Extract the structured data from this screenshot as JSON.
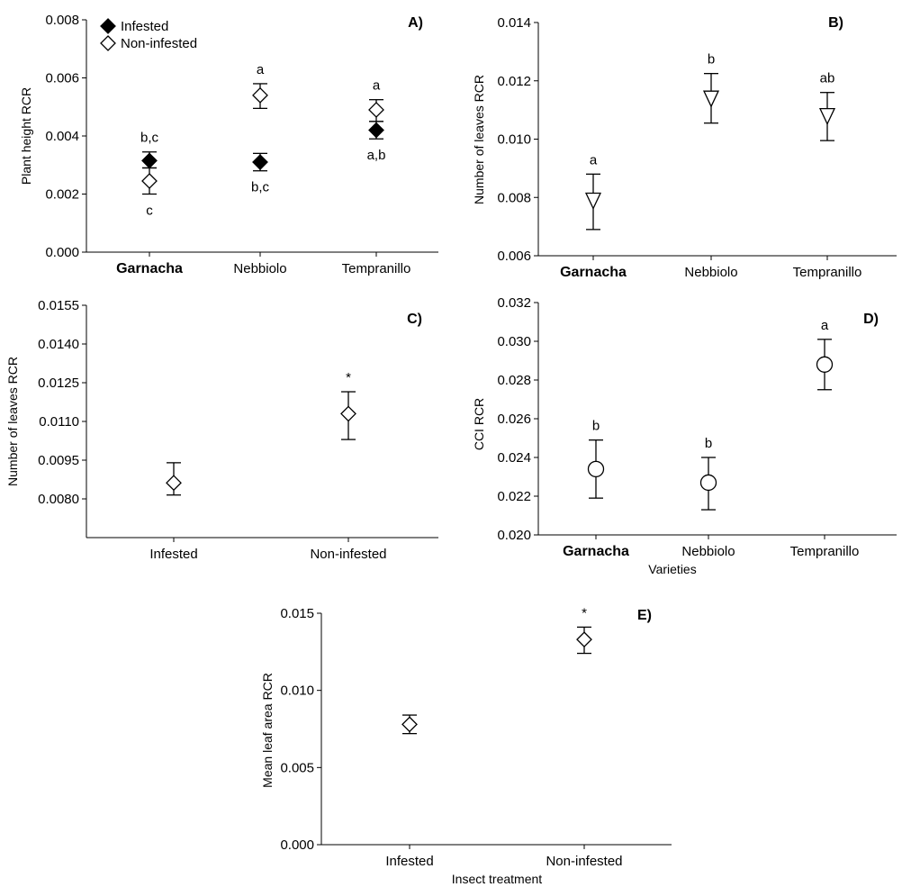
{
  "chart_data": [
    {
      "id": "A",
      "type": "scatter",
      "panel_label": "A)",
      "ylabel": "Plant height  RCR",
      "xlabel": "",
      "ylim": [
        0,
        0.008
      ],
      "yticks": [
        "0.000",
        "0.002",
        "0.004",
        "0.006",
        "0.008"
      ],
      "categories": [
        "Garnacha",
        "Nebbiolo",
        "Tempranillo"
      ],
      "bold_categories": [
        "Garnacha"
      ],
      "legend": [
        {
          "label": "Infested",
          "marker": "diamond-filled"
        },
        {
          "label": "Non-infested",
          "marker": "diamond-open"
        }
      ],
      "series": [
        {
          "name": "Infested",
          "marker": "diamond-filled",
          "values": [
            0.00315,
            0.0031,
            0.0042
          ],
          "err_low": [
            0.0029,
            0.0028,
            0.0039
          ],
          "err_high": [
            0.00345,
            0.0034,
            0.0045
          ],
          "letters": [
            "b,c",
            "b,c",
            "a,b"
          ],
          "letter_pos": [
            "above",
            "below",
            "below"
          ]
        },
        {
          "name": "Non-infested",
          "marker": "diamond-open",
          "values": [
            0.00245,
            0.0054,
            0.0049
          ],
          "err_low": [
            0.002,
            0.00495,
            0.0045
          ],
          "err_high": [
            0.0029,
            0.0058,
            0.00525
          ],
          "letters": [
            "c",
            "a",
            "a"
          ],
          "letter_pos": [
            "below",
            "above",
            "above"
          ]
        }
      ]
    },
    {
      "id": "B",
      "type": "scatter",
      "panel_label": "B)",
      "ylabel": "Number of leaves RCR",
      "xlabel": "",
      "ylim": [
        0.006,
        0.014
      ],
      "yticks": [
        "0.006",
        "0.008",
        "0.010",
        "0.012",
        "0.014"
      ],
      "categories": [
        "Garnacha",
        "Nebbiolo",
        "Tempranillo"
      ],
      "bold_categories": [
        "Garnacha"
      ],
      "series": [
        {
          "name": "Number of leaves",
          "marker": "triangle-down",
          "values": [
            0.0079,
            0.0114,
            0.0108
          ],
          "err_low": [
            0.0069,
            0.01055,
            0.00995
          ],
          "err_high": [
            0.0088,
            0.01225,
            0.0116
          ],
          "letters": [
            "a",
            "b",
            "ab"
          ],
          "letter_pos": [
            "above",
            "above",
            "above"
          ]
        }
      ]
    },
    {
      "id": "C",
      "type": "scatter",
      "panel_label": "C)",
      "ylabel": "Number of leaves RCR",
      "xlabel": "",
      "ylim": [
        0.0065,
        0.0155
      ],
      "yticks": [
        "0.0080",
        "0.0095",
        "0.0110",
        "0.0125",
        "0.0140",
        "0.0155"
      ],
      "tick_values": [
        0.008,
        0.0095,
        0.011,
        0.0125,
        0.014,
        0.0155
      ],
      "categories": [
        "Infested",
        "Non-infested"
      ],
      "bold_categories": [],
      "series": [
        {
          "name": "Number of leaves",
          "marker": "diamond-open",
          "values": [
            0.00862,
            0.0113
          ],
          "err_low": [
            0.00815,
            0.0103
          ],
          "err_high": [
            0.0094,
            0.01215
          ],
          "letters": [
            "",
            "*"
          ],
          "letter_pos": [
            "above",
            "above"
          ]
        }
      ]
    },
    {
      "id": "D",
      "type": "scatter",
      "panel_label": "D)",
      "ylabel": "CCI RCR",
      "xlabel": "Varieties",
      "ylim": [
        0.02,
        0.032
      ],
      "yticks": [
        "0.020",
        "0.022",
        "0.024",
        "0.026",
        "0.028",
        "0.030",
        "0.032"
      ],
      "categories": [
        "Garnacha",
        "Nebbiolo",
        "Tempranillo"
      ],
      "bold_categories": [
        "Garnacha"
      ],
      "series": [
        {
          "name": "CCI",
          "marker": "circle-open",
          "values": [
            0.0234,
            0.0227,
            0.0288
          ],
          "err_low": [
            0.0219,
            0.0213,
            0.0275
          ],
          "err_high": [
            0.0249,
            0.024,
            0.0301
          ],
          "letters": [
            "b",
            "b",
            "a"
          ],
          "letter_pos": [
            "above",
            "above",
            "above"
          ]
        }
      ]
    },
    {
      "id": "E",
      "type": "scatter",
      "panel_label": "E)",
      "ylabel": "Mean leaf area RCR",
      "xlabel": "Insect treatment",
      "ylim": [
        0,
        0.015
      ],
      "yticks": [
        "0.000",
        "0.005",
        "0.010",
        "0.015"
      ],
      "categories": [
        "Infested",
        "Non-infested"
      ],
      "bold_categories": [],
      "series": [
        {
          "name": "Mean leaf area",
          "marker": "diamond-open",
          "values": [
            0.0078,
            0.0133
          ],
          "err_low": [
            0.0072,
            0.0124
          ],
          "err_high": [
            0.0084,
            0.0141
          ],
          "letters": [
            "",
            "*"
          ],
          "letter_pos": [
            "above",
            "above"
          ]
        }
      ]
    }
  ]
}
